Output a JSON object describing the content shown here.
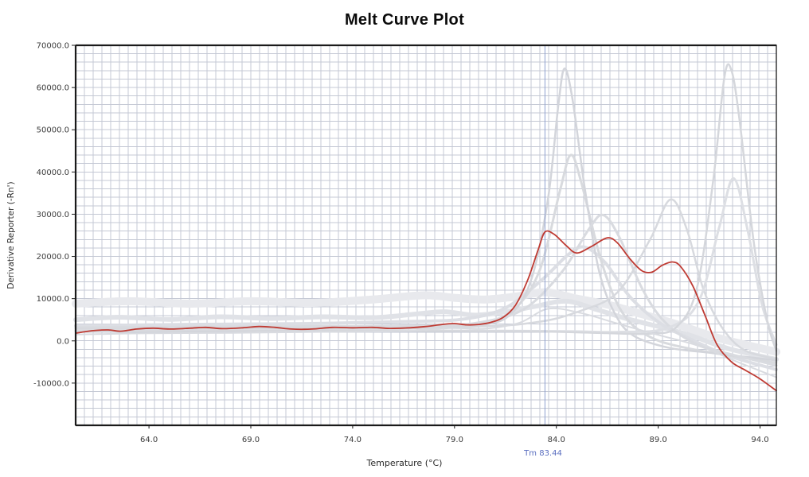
{
  "chart_data": {
    "type": "line",
    "title": "Melt Curve Plot",
    "xlabel": "Temperature (°C)",
    "ylabel": "Derivative Reporter (-Rn')",
    "xlim": [
      60.4,
      94.8
    ],
    "ylim": [
      -20000,
      70000
    ],
    "grid": true,
    "legend": "none",
    "x_ticks": [
      64.0,
      69.0,
      74.0,
      79.0,
      84.0,
      89.0,
      94.0
    ],
    "x_tick_labels": [
      "64.0",
      "69.0",
      "74.0",
      "79.0",
      "84.0",
      "89.0",
      "94.0"
    ],
    "y_ticks": [
      70000,
      60000,
      50000,
      40000,
      30000,
      20000,
      10000,
      0,
      -10000
    ],
    "y_tick_labels": [
      "70000.0",
      "60000.0",
      "50000.0",
      "40000.0",
      "30000.0",
      "20000.0",
      "10000.0",
      "0.0",
      "-10000.0"
    ],
    "annotation": {
      "label": "Tm 83.44",
      "tm": 83.44
    },
    "colors": {
      "highlight": "#bf3b33",
      "grid": "#c4c8d4",
      "frame": "#1a1a1a",
      "tick_text": "#3b3b3b",
      "tm_line": "#8ea0d0",
      "tm_text": "#5b6fc0"
    },
    "series": [
      {
        "name": "background-band-a",
        "role": "background",
        "color": "#e8e9ed",
        "width": 10,
        "points": [
          [
            60.4,
            8800
          ],
          [
            63,
            9400
          ],
          [
            66,
            8800
          ],
          [
            69,
            9400
          ],
          [
            72,
            9000
          ],
          [
            75,
            9800
          ],
          [
            77.5,
            10800
          ],
          [
            79,
            10200
          ],
          [
            80.5,
            9800
          ],
          [
            82,
            10500
          ],
          [
            83.5,
            11500
          ],
          [
            85,
            10000
          ],
          [
            86.5,
            8600
          ],
          [
            88,
            6600
          ],
          [
            90,
            3800
          ],
          [
            92,
            600
          ],
          [
            94.8,
            -2600
          ]
        ]
      },
      {
        "name": "background-band-b",
        "role": "background",
        "color": "#e0e2e7",
        "width": 6,
        "points": [
          [
            60.4,
            5000
          ],
          [
            62.5,
            5600
          ],
          [
            65,
            5100
          ],
          [
            67.5,
            5700
          ],
          [
            70,
            5300
          ],
          [
            72.5,
            5700
          ],
          [
            75,
            5500
          ],
          [
            77,
            6300
          ],
          [
            78.5,
            6900
          ],
          [
            80,
            6100
          ],
          [
            81.5,
            6900
          ],
          [
            83,
            8200
          ],
          [
            84.5,
            9400
          ],
          [
            86,
            7400
          ],
          [
            87.5,
            5200
          ],
          [
            89,
            3400
          ],
          [
            90.5,
            1400
          ],
          [
            92.5,
            -1900
          ],
          [
            94.8,
            -4400
          ]
        ]
      },
      {
        "name": "background-broad-85",
        "role": "background",
        "color": "#dcdee4",
        "width": 4,
        "points": [
          [
            60.4,
            3600
          ],
          [
            66,
            3900
          ],
          [
            72,
            4100
          ],
          [
            77,
            4600
          ],
          [
            79.5,
            5200
          ],
          [
            81.5,
            7800
          ],
          [
            83.3,
            14500
          ],
          [
            84.6,
            20500
          ],
          [
            85.4,
            22200
          ],
          [
            86.4,
            18500
          ],
          [
            87.6,
            10500
          ],
          [
            89,
            4500
          ],
          [
            90.5,
            600
          ],
          [
            92.5,
            -3600
          ],
          [
            94.8,
            -6800
          ]
        ]
      },
      {
        "name": "background-peak-84b",
        "role": "background",
        "color": "#d8dade",
        "width": 3,
        "points": [
          [
            60.4,
            3000
          ],
          [
            70,
            3200
          ],
          [
            78,
            3500
          ],
          [
            80.5,
            4400
          ],
          [
            82,
            7800
          ],
          [
            83.2,
            17000
          ],
          [
            84.2,
            36000
          ],
          [
            84.7,
            44000
          ],
          [
            85.2,
            38000
          ],
          [
            86.2,
            19000
          ],
          [
            87.2,
            7000
          ],
          [
            88.5,
            1200
          ],
          [
            90.5,
            -1800
          ],
          [
            94.8,
            -5200
          ]
        ]
      },
      {
        "name": "background-tall-84",
        "role": "background",
        "color": "#d3d5db",
        "width": 2.5,
        "points": [
          [
            60.4,
            2600
          ],
          [
            70,
            2800
          ],
          [
            78,
            3100
          ],
          [
            80.5,
            3900
          ],
          [
            81.8,
            6500
          ],
          [
            82.8,
            15000
          ],
          [
            83.6,
            34000
          ],
          [
            84.1,
            56000
          ],
          [
            84.4,
            64500
          ],
          [
            84.8,
            57000
          ],
          [
            85.4,
            36000
          ],
          [
            86.1,
            16500
          ],
          [
            86.9,
            6200
          ],
          [
            87.8,
            1200
          ],
          [
            89.5,
            -1600
          ],
          [
            91.5,
            -2800
          ],
          [
            94.8,
            -4600
          ]
        ]
      },
      {
        "name": "background-peak-86",
        "role": "background",
        "color": "#d9dbe0",
        "width": 3,
        "points": [
          [
            60.4,
            3200
          ],
          [
            70,
            3400
          ],
          [
            78,
            3700
          ],
          [
            80.5,
            4600
          ],
          [
            82.5,
            7800
          ],
          [
            84.3,
            16500
          ],
          [
            85.6,
            26500
          ],
          [
            86.3,
            29800
          ],
          [
            87.1,
            24500
          ],
          [
            88.2,
            12500
          ],
          [
            89.3,
            4600
          ],
          [
            90.8,
            -600
          ],
          [
            92.5,
            -3100
          ],
          [
            94.8,
            -5800
          ]
        ]
      },
      {
        "name": "background-peak-89",
        "role": "background",
        "color": "#d7d9de",
        "width": 2.5,
        "points": [
          [
            60.4,
            2900
          ],
          [
            72,
            3100
          ],
          [
            80,
            3400
          ],
          [
            83,
            4400
          ],
          [
            85,
            6800
          ],
          [
            87,
            11500
          ],
          [
            88.6,
            24000
          ],
          [
            89.6,
            33500
          ],
          [
            90.4,
            26500
          ],
          [
            91.2,
            12500
          ],
          [
            92.1,
            3400
          ],
          [
            93.2,
            -2100
          ],
          [
            94.8,
            -4300
          ]
        ]
      },
      {
        "name": "background-peak-92b",
        "role": "background",
        "color": "#dddfe4",
        "width": 3,
        "points": [
          [
            60.4,
            2400
          ],
          [
            75,
            2500
          ],
          [
            84,
            2300
          ],
          [
            87,
            2100
          ],
          [
            89.5,
            3100
          ],
          [
            91,
            9500
          ],
          [
            92,
            27000
          ],
          [
            92.7,
            38500
          ],
          [
            93.4,
            26000
          ],
          [
            94.1,
            8500
          ],
          [
            94.8,
            -900
          ]
        ]
      },
      {
        "name": "background-tall-92",
        "role": "background",
        "color": "#d5d7dc",
        "width": 2.5,
        "points": [
          [
            60.4,
            2200
          ],
          [
            72,
            2400
          ],
          [
            82,
            2300
          ],
          [
            86,
            1900
          ],
          [
            88.6,
            1700
          ],
          [
            89.9,
            3300
          ],
          [
            90.9,
            12500
          ],
          [
            91.7,
            38000
          ],
          [
            92.25,
            62500
          ],
          [
            92.6,
            64000
          ],
          [
            93,
            52000
          ],
          [
            93.7,
            23000
          ],
          [
            94.35,
            4800
          ],
          [
            94.8,
            -2400
          ]
        ]
      },
      {
        "name": "background-low-1",
        "role": "background",
        "color": "#d9dbe0",
        "width": 2,
        "points": [
          [
            60.4,
            1500
          ],
          [
            64,
            1800
          ],
          [
            68,
            1900
          ],
          [
            72,
            2100
          ],
          [
            76,
            2300
          ],
          [
            78.8,
            3000
          ],
          [
            80.5,
            2900
          ],
          [
            82.2,
            4300
          ],
          [
            83.6,
            7600
          ],
          [
            85.2,
            6600
          ],
          [
            87,
            4100
          ],
          [
            89,
            1400
          ],
          [
            91,
            -1200
          ],
          [
            93,
            -5200
          ],
          [
            94.8,
            -8600
          ]
        ]
      },
      {
        "name": "highlighted-well-curve",
        "role": "highlight",
        "color": "#bf3b33",
        "width": 1.8,
        "points": [
          [
            60.4,
            1800
          ],
          [
            61.2,
            2400
          ],
          [
            62,
            2600
          ],
          [
            62.6,
            2300
          ],
          [
            63.4,
            2800
          ],
          [
            64.2,
            3000
          ],
          [
            65,
            2800
          ],
          [
            66,
            3000
          ],
          [
            66.8,
            3200
          ],
          [
            67.6,
            2900
          ],
          [
            68.6,
            3100
          ],
          [
            69.4,
            3400
          ],
          [
            70.2,
            3200
          ],
          [
            71,
            2800
          ],
          [
            72,
            2800
          ],
          [
            73,
            3200
          ],
          [
            74,
            3100
          ],
          [
            75,
            3200
          ],
          [
            75.8,
            2950
          ],
          [
            76.8,
            3100
          ],
          [
            77.6,
            3400
          ],
          [
            78.4,
            3900
          ],
          [
            79,
            4100
          ],
          [
            79.6,
            3800
          ],
          [
            80.2,
            3900
          ],
          [
            80.8,
            4400
          ],
          [
            81.4,
            5600
          ],
          [
            82,
            8500
          ],
          [
            82.6,
            14500
          ],
          [
            83.1,
            21500
          ],
          [
            83.44,
            25800
          ],
          [
            83.9,
            25200
          ],
          [
            84.5,
            22500
          ],
          [
            85,
            20800
          ],
          [
            85.7,
            22300
          ],
          [
            86.5,
            24400
          ],
          [
            87,
            23200
          ],
          [
            87.6,
            19500
          ],
          [
            88.2,
            16600
          ],
          [
            88.7,
            16300
          ],
          [
            89.2,
            17900
          ],
          [
            89.7,
            18700
          ],
          [
            90.1,
            17600
          ],
          [
            90.7,
            13000
          ],
          [
            91.3,
            6000
          ],
          [
            91.9,
            -1000
          ],
          [
            92.6,
            -5000
          ],
          [
            93.3,
            -7000
          ],
          [
            94,
            -9000
          ],
          [
            94.8,
            -11800
          ]
        ]
      }
    ]
  }
}
